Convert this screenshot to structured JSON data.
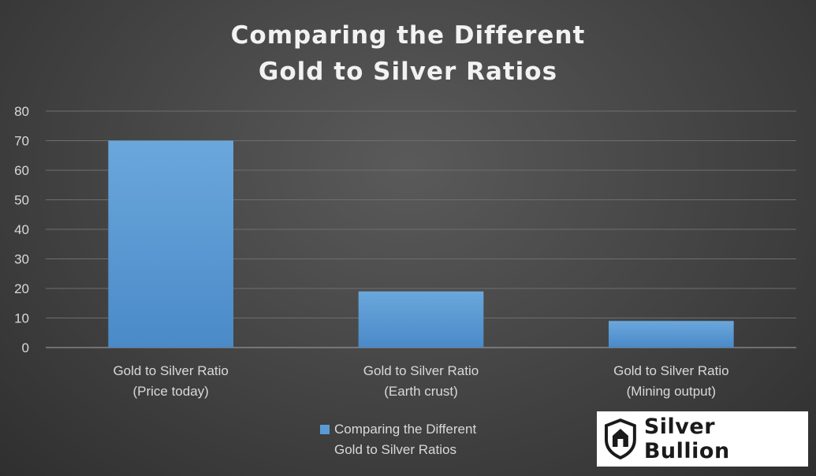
{
  "chart_data": {
    "type": "bar",
    "title_lines": [
      "Comparing the Different",
      "Gold to Silver Ratios"
    ],
    "categories": [
      [
        "Gold to Silver Ratio",
        "(Price today)"
      ],
      [
        "Gold to Silver Ratio",
        "(Earth crust)"
      ],
      [
        "Gold to Silver Ratio",
        "(Mining output)"
      ]
    ],
    "series": [
      {
        "name_lines": [
          "Comparing the Different",
          "Gold to Silver Ratios"
        ],
        "values": [
          70,
          19,
          9
        ],
        "color": "#5b9bd5"
      }
    ],
    "ylim": [
      0,
      80
    ],
    "yticks": [
      0,
      10,
      20,
      30,
      40,
      50,
      60,
      70,
      80
    ],
    "grid": true,
    "legend_position": "bottom"
  },
  "logo": {
    "text": "Silver Bullion"
  }
}
